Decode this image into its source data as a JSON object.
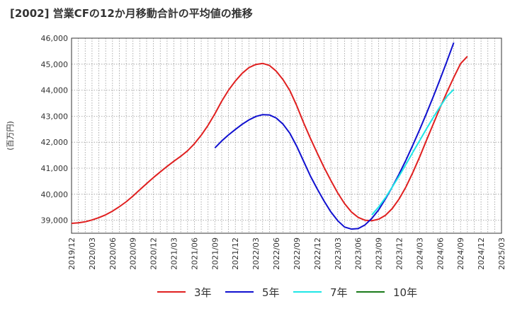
{
  "chart_data": {
    "type": "line",
    "title": "[2002]  営業CFの12か月移動合計の平均値の推移",
    "ylabel": "(百万円)",
    "xlabel": "",
    "ylim": [
      38500,
      46000
    ],
    "yticks": [
      39000,
      40000,
      41000,
      42000,
      43000,
      44000,
      45000,
      46000
    ],
    "ytick_labels": [
      "39,000",
      "40,000",
      "41,000",
      "42,000",
      "43,000",
      "44,000",
      "45,000",
      "46,000"
    ],
    "x_start": "2019/12",
    "x_end": "2025/03",
    "xtick_labels": [
      "2019/12",
      "2020/03",
      "2020/06",
      "2020/09",
      "2020/12",
      "2021/03",
      "2021/06",
      "2021/09",
      "2021/12",
      "2022/03",
      "2022/06",
      "2022/09",
      "2022/12",
      "2023/03",
      "2023/06",
      "2023/09",
      "2023/12",
      "2024/03",
      "2024/06",
      "2024/09",
      "2024/12",
      "2025/03"
    ],
    "grid": true,
    "legend_position": "bottom",
    "series": [
      {
        "name": "3年",
        "color": "#e02020",
        "points": [
          [
            "2019/12",
            38880
          ],
          [
            "2020/01",
            38900
          ],
          [
            "2020/02",
            38940
          ],
          [
            "2020/03",
            39010
          ],
          [
            "2020/04",
            39100
          ],
          [
            "2020/05",
            39210
          ],
          [
            "2020/06",
            39350
          ],
          [
            "2020/07",
            39520
          ],
          [
            "2020/08",
            39710
          ],
          [
            "2020/09",
            39930
          ],
          [
            "2020/10",
            40170
          ],
          [
            "2020/11",
            40410
          ],
          [
            "2020/12",
            40640
          ],
          [
            "2021/01",
            40860
          ],
          [
            "2021/02",
            41070
          ],
          [
            "2021/03",
            41270
          ],
          [
            "2021/04",
            41460
          ],
          [
            "2021/05",
            41670
          ],
          [
            "2021/06",
            41940
          ],
          [
            "2021/07",
            42270
          ],
          [
            "2021/08",
            42650
          ],
          [
            "2021/09",
            43090
          ],
          [
            "2021/10",
            43580
          ],
          [
            "2021/11",
            44000
          ],
          [
            "2021/12",
            44350
          ],
          [
            "2022/01",
            44650
          ],
          [
            "2022/02",
            44870
          ],
          [
            "2022/03",
            44990
          ],
          [
            "2022/04",
            45030
          ],
          [
            "2022/05",
            44950
          ],
          [
            "2022/06",
            44730
          ],
          [
            "2022/07",
            44400
          ],
          [
            "2022/08",
            43980
          ],
          [
            "2022/09",
            43400
          ],
          [
            "2022/10",
            42750
          ],
          [
            "2022/11",
            42150
          ],
          [
            "2022/12",
            41580
          ],
          [
            "2023/01",
            41030
          ],
          [
            "2023/02",
            40530
          ],
          [
            "2023/03",
            40050
          ],
          [
            "2023/04",
            39640
          ],
          [
            "2023/05",
            39320
          ],
          [
            "2023/06",
            39110
          ],
          [
            "2023/07",
            39000
          ],
          [
            "2023/08",
            38980
          ],
          [
            "2023/09",
            39040
          ],
          [
            "2023/10",
            39190
          ],
          [
            "2023/11",
            39450
          ],
          [
            "2023/12",
            39820
          ],
          [
            "2024/01",
            40280
          ],
          [
            "2024/02",
            40830
          ],
          [
            "2024/03",
            41430
          ],
          [
            "2024/04",
            42070
          ],
          [
            "2024/05",
            42700
          ],
          [
            "2024/06",
            43330
          ],
          [
            "2024/07",
            43920
          ],
          [
            "2024/08",
            44490
          ],
          [
            "2024/09",
            45020
          ],
          [
            "2024/10",
            45300
          ]
        ]
      },
      {
        "name": "5年",
        "color": "#1010d0",
        "points": [
          [
            "2021/09",
            41780
          ],
          [
            "2021/10",
            42050
          ],
          [
            "2021/11",
            42280
          ],
          [
            "2021/12",
            42490
          ],
          [
            "2022/01",
            42690
          ],
          [
            "2022/02",
            42860
          ],
          [
            "2022/03",
            42990
          ],
          [
            "2022/04",
            43060
          ],
          [
            "2022/05",
            43050
          ],
          [
            "2022/06",
            42930
          ],
          [
            "2022/07",
            42690
          ],
          [
            "2022/08",
            42340
          ],
          [
            "2022/09",
            41840
          ],
          [
            "2022/10",
            41270
          ],
          [
            "2022/11",
            40700
          ],
          [
            "2022/12",
            40200
          ],
          [
            "2023/01",
            39740
          ],
          [
            "2023/02",
            39320
          ],
          [
            "2023/03",
            38980
          ],
          [
            "2023/04",
            38740
          ],
          [
            "2023/05",
            38660
          ],
          [
            "2023/06",
            38680
          ],
          [
            "2023/07",
            38820
          ],
          [
            "2023/08",
            39070
          ],
          [
            "2023/09",
            39400
          ],
          [
            "2023/10",
            39820
          ],
          [
            "2023/11",
            40280
          ],
          [
            "2023/12",
            40780
          ],
          [
            "2024/01",
            41310
          ],
          [
            "2024/02",
            41880
          ],
          [
            "2024/03",
            42480
          ],
          [
            "2024/04",
            43100
          ],
          [
            "2024/05",
            43750
          ],
          [
            "2024/06",
            44420
          ],
          [
            "2024/07",
            45110
          ],
          [
            "2024/08",
            45830
          ]
        ]
      },
      {
        "name": "7年",
        "color": "#1ee6e6",
        "points": [
          [
            "2023/08",
            39200
          ],
          [
            "2023/09",
            39510
          ],
          [
            "2023/10",
            39870
          ],
          [
            "2023/11",
            40280
          ],
          [
            "2023/12",
            40700
          ],
          [
            "2024/01",
            41150
          ],
          [
            "2024/02",
            41610
          ],
          [
            "2024/03",
            42060
          ],
          [
            "2024/04",
            42510
          ],
          [
            "2024/05",
            42950
          ],
          [
            "2024/06",
            43370
          ],
          [
            "2024/07",
            43760
          ],
          [
            "2024/08",
            44030
          ]
        ]
      },
      {
        "name": "10年",
        "color": "#1a7a1a",
        "points": []
      }
    ]
  }
}
